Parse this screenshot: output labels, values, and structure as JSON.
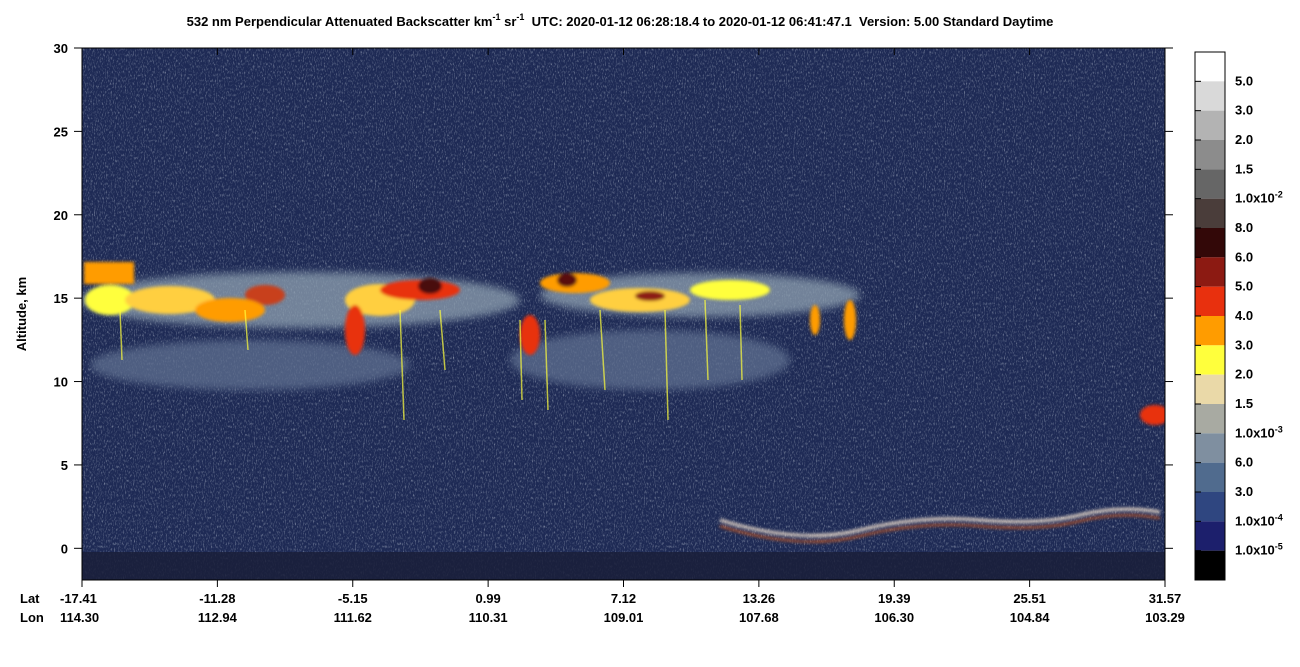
{
  "chart_data": {
    "type": "curtain",
    "title": {
      "a": "532 nm Perpendicular Attenuated Backscatter km",
      "a_exp": "-1",
      "b": " sr",
      "b_exp": "-1",
      "c": "  UTC: 2020-01-12 06:28:18.4 to 2020-01-12 06:41:47.1  Version: 5.00 Standard Daytime"
    },
    "y_label": "Altitude, km",
    "ylim": [
      -1.9,
      30
    ],
    "yticks": [
      0,
      5,
      10,
      15,
      20,
      25,
      30
    ],
    "x_row_labels": [
      "Lat",
      "Lon"
    ],
    "lat": [
      "-17.41",
      "-11.28",
      "-5.15",
      "0.99",
      "7.12",
      "13.26",
      "19.39",
      "25.51",
      "31.57"
    ],
    "lon": [
      "114.30",
      "112.94",
      "111.62",
      "110.31",
      "109.01",
      "107.68",
      "106.30",
      "104.84",
      "103.29"
    ],
    "colorbar": {
      "colors": [
        "#ffffff",
        "#d9d9d9",
        "#b3b3b3",
        "#8c8c8c",
        "#666666",
        "#4a3d3a",
        "#330808",
        "#8c1a12",
        "#e8300e",
        "#ff9c00",
        "#ffff3c",
        "#ead9a8",
        "#a8aaa2",
        "#7f8fa0",
        "#506b8e",
        "#2f4680",
        "#1c1f6c",
        "#000000"
      ],
      "labels": [
        {
          "m": "5.0"
        },
        {
          "m": "3.0"
        },
        {
          "m": "2.0"
        },
        {
          "m": "1.5"
        },
        {
          "m": "1.0x10",
          "e": "-2"
        },
        {
          "m": "8.0"
        },
        {
          "m": "6.0"
        },
        {
          "m": "5.0"
        },
        {
          "m": "4.0"
        },
        {
          "m": "3.0"
        },
        {
          "m": "2.0"
        },
        {
          "m": "1.5"
        },
        {
          "m": "1.0x10",
          "e": "-3"
        },
        {
          "m": "6.0"
        },
        {
          "m": "3.0"
        },
        {
          "m": "1.0x10",
          "e": "-4"
        },
        {
          "m": "1.0x10",
          "e": "-5"
        }
      ]
    }
  }
}
